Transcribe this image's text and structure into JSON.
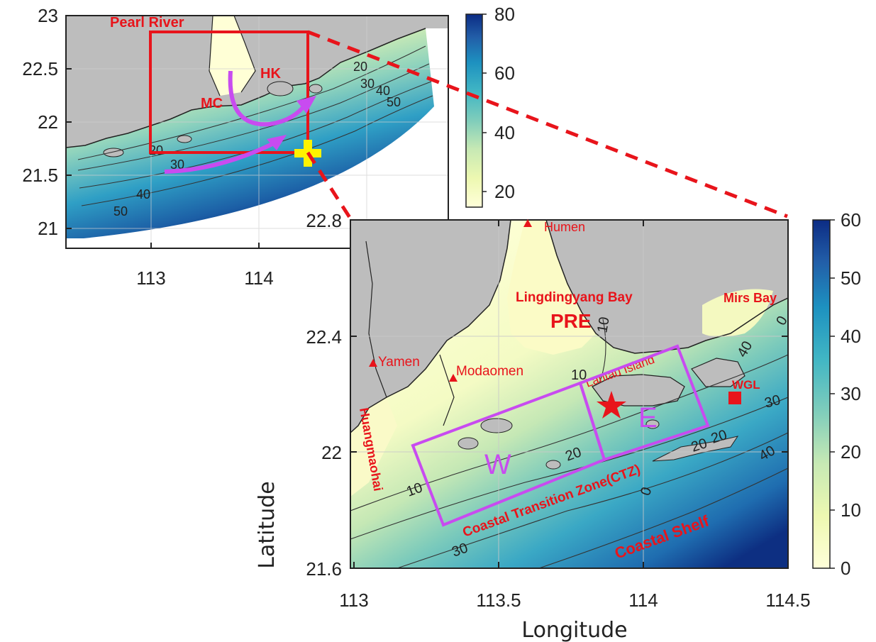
{
  "overview_map": {
    "lat_ticks": [
      "23",
      "22.5",
      "22",
      "21.5",
      "21"
    ],
    "lon_ticks": [
      "113",
      "114"
    ],
    "labels": {
      "pearl_river": "Pearl River",
      "hk": "HK",
      "mc": "MC"
    },
    "contours": [
      "20",
      "30",
      "40",
      "50",
      "30",
      "20",
      "40",
      "50"
    ],
    "colorbar": {
      "ticks": [
        "80",
        "60",
        "40",
        "20"
      ],
      "range": [
        0,
        80
      ]
    }
  },
  "detail_map": {
    "lat_ticks": [
      "22.8",
      "22.4",
      "22",
      "21.6"
    ],
    "lon_ticks": [
      "113",
      "113.5",
      "114",
      "114.5"
    ],
    "xlabel": "Longitude",
    "ylabel": "Latitude",
    "labels": {
      "humen": "Humen",
      "lingdingyang": "Lingdingyang Bay",
      "pre": "PRE",
      "mirs_bay": "Mirs Bay",
      "yamen": "Yamen",
      "modaomen": "Modaomen",
      "lantau": "Lantau Island",
      "wgl": "WGL",
      "huangmao": "Huangmaohai",
      "ctz": "Coastal Transition Zone(CTZ)",
      "shelf": "Coastal Shelf",
      "box_w": "W",
      "box_e": "E"
    },
    "contours": [
      "10",
      "10",
      "20",
      "30",
      "40",
      "10",
      "20",
      "30",
      "40",
      "0",
      "20",
      "0"
    ],
    "colorbar": {
      "ticks": [
        "60",
        "50",
        "40",
        "30",
        "20",
        "10",
        "0"
      ],
      "range": [
        0,
        60
      ]
    }
  },
  "colors": {
    "land": "#bdbdbd",
    "shallow": "#ffffcc",
    "deep": "#0b2265",
    "highlight_red": "#e8141b",
    "box_magenta": "#c84bf0",
    "marker_yellow": "#fff200"
  }
}
